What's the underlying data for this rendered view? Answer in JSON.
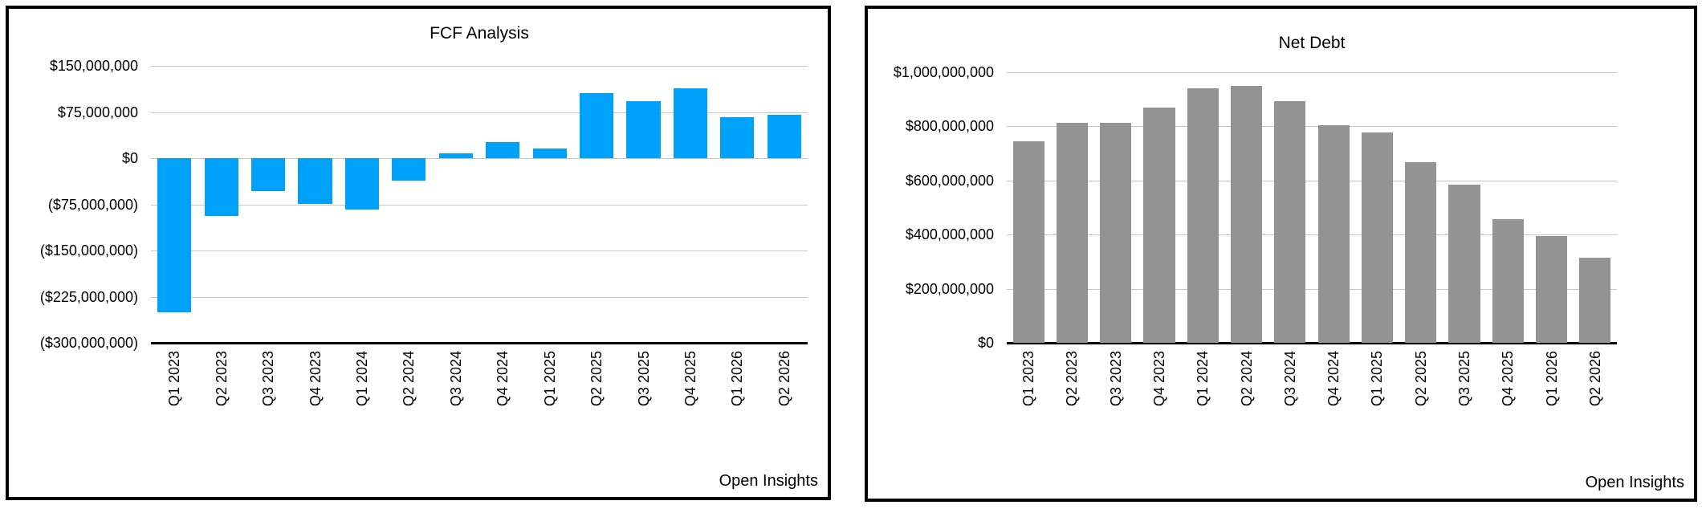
{
  "chart_data": [
    {
      "type": "bar",
      "title": "FCF Analysis",
      "footer": "Open Insights",
      "bar_color": "#00A1F9",
      "gridline_color": "#C6C6C6",
      "axis_color": "#000000",
      "legend": "none",
      "grid": "horizontal",
      "xlabel": "",
      "ylabel": "",
      "categories": [
        "Q1 2023",
        "Q2 2023",
        "Q3 2023",
        "Q4 2023",
        "Q1 2024",
        "Q2 2024",
        "Q3 2024",
        "Q4 2024",
        "Q1 2025",
        "Q2 2025",
        "Q3 2025",
        "Q4 2025",
        "Q1 2026",
        "Q2 2026"
      ],
      "values": [
        -250000000,
        -94000000,
        -54000000,
        -74000000,
        -84000000,
        -36000000,
        8000000,
        26000000,
        16000000,
        106000000,
        93000000,
        113000000,
        67000000,
        71000000
      ],
      "ylim": [
        -300000000,
        150000000
      ],
      "y_ticks": [
        {
          "label": "$150,000,000",
          "value": 150000000
        },
        {
          "label": "$75,000,000",
          "value": 75000000
        },
        {
          "label": "$0",
          "value": 0
        },
        {
          "label": "($75,000,000)",
          "value": -75000000
        },
        {
          "label": "($150,000,000)",
          "value": -150000000
        },
        {
          "label": "($225,000,000)",
          "value": -225000000
        },
        {
          "label": "($300,000,000)",
          "value": -300000000
        }
      ]
    },
    {
      "type": "bar",
      "title": "Net Debt",
      "footer": "Open Insights",
      "bar_color": "#939393",
      "gridline_color": "#C6C6C6",
      "axis_color": "#000000",
      "legend": "none",
      "grid": "horizontal",
      "xlabel": "",
      "ylabel": "",
      "categories": [
        "Q1 2023",
        "Q2 2023",
        "Q3 2023",
        "Q4 2023",
        "Q1 2024",
        "Q2 2024",
        "Q3 2024",
        "Q4 2024",
        "Q1 2025",
        "Q2 2025",
        "Q3 2025",
        "Q4 2025",
        "Q1 2026",
        "Q2 2026"
      ],
      "values": [
        745000000,
        813000000,
        812000000,
        870000000,
        940000000,
        950000000,
        894000000,
        803000000,
        776000000,
        668000000,
        586000000,
        457000000,
        395000000,
        315000000
      ],
      "ylim": [
        0,
        1000000000
      ],
      "y_ticks": [
        {
          "label": "$1,000,000,000",
          "value": 1000000000
        },
        {
          "label": "$800,000,000",
          "value": 800000000
        },
        {
          "label": "$600,000,000",
          "value": 600000000
        },
        {
          "label": "$400,000,000",
          "value": 400000000
        },
        {
          "label": "$200,000,000",
          "value": 200000000
        },
        {
          "label": "$0",
          "value": 0
        }
      ]
    }
  ]
}
